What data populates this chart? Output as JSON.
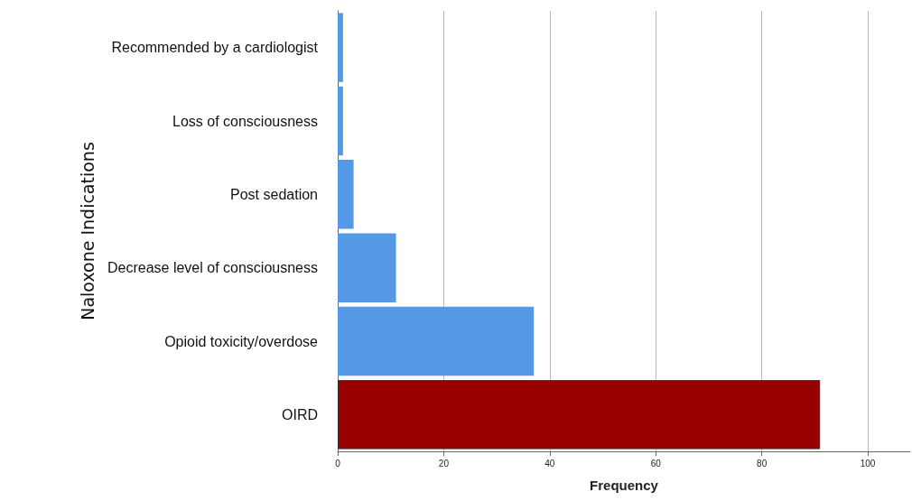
{
  "chart_data": {
    "type": "bar",
    "orientation": "horizontal",
    "xlabel": "Frequency",
    "ylabel": "Naloxone Indications",
    "categories": [
      "Recommended by a cardiologist",
      "Loss of consciousness",
      "Post sedation",
      "Decrease level of consciousness",
      "Opioid toxicity/overdose",
      "OIRD"
    ],
    "values": [
      1,
      1,
      3,
      11,
      37,
      91
    ],
    "colors": [
      "#5599e6",
      "#5599e6",
      "#5599e6",
      "#5599e6",
      "#5599e6",
      "#990000"
    ],
    "xlim": [
      0,
      108
    ],
    "xticks": [
      0,
      20,
      40,
      60,
      80,
      100
    ],
    "grid": "x"
  }
}
